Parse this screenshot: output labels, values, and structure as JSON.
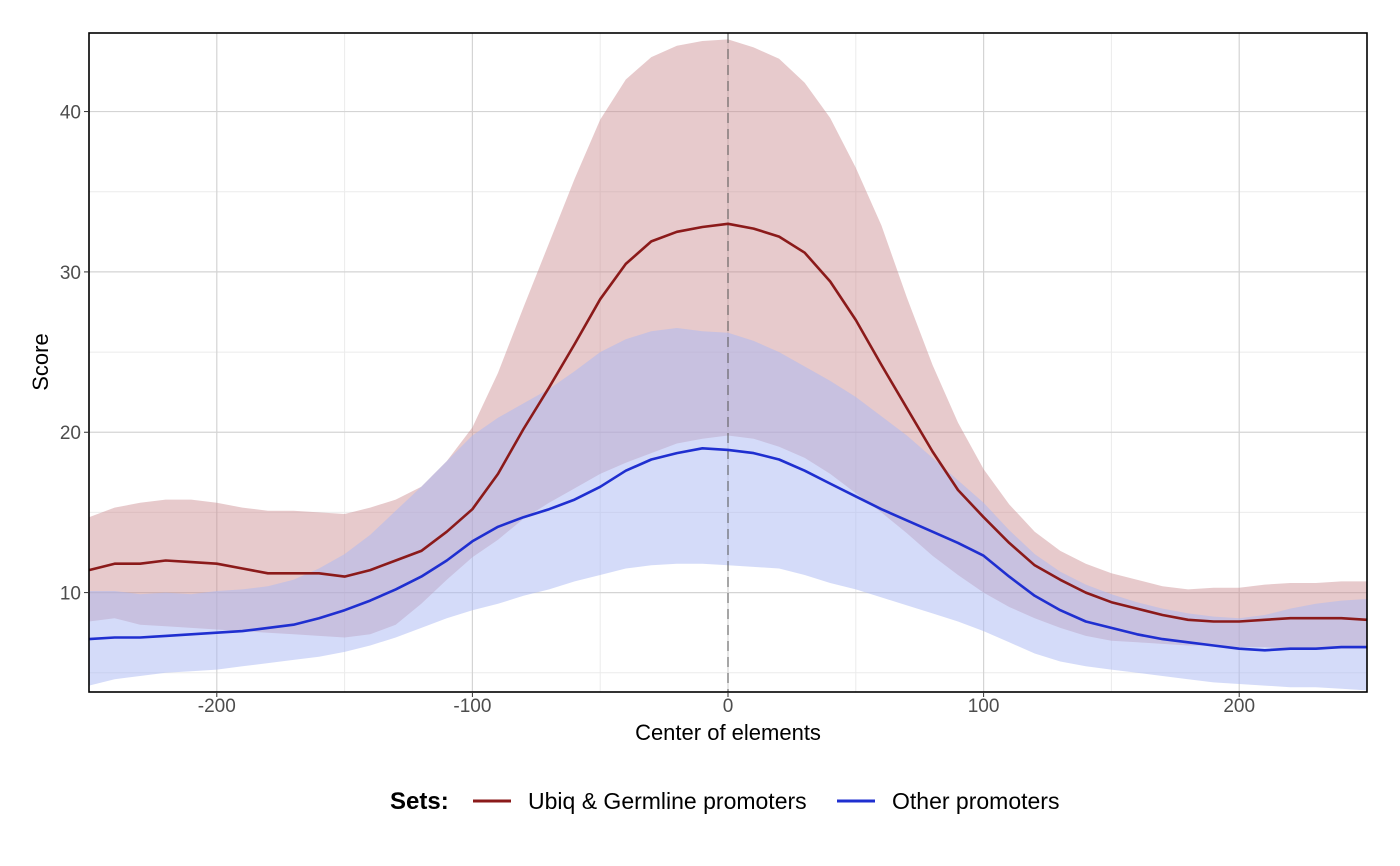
{
  "chart_data": {
    "type": "line",
    "xlabel": "Center of elements",
    "ylabel": "Score",
    "xlim": [
      -250,
      250
    ],
    "ylim": [
      3.8,
      44.9
    ],
    "x_ticks": [
      -200,
      -100,
      0,
      100,
      200
    ],
    "x_tick_labels": [
      "-200",
      "-100",
      "0",
      "100",
      "200"
    ],
    "y_ticks": [
      10,
      20,
      30,
      40
    ],
    "y_tick_labels": [
      "10",
      "20",
      "30",
      "40"
    ],
    "x_minor_ticks": [
      -250,
      -150,
      -50,
      50,
      150,
      250
    ],
    "y_minor_ticks": [
      5,
      15,
      25,
      35
    ],
    "grid": true,
    "vline_x": 0,
    "legend": {
      "title": "Sets:",
      "position": "bottom"
    },
    "x": [
      -250,
      -240,
      -230,
      -220,
      -210,
      -200,
      -190,
      -180,
      -170,
      -160,
      -150,
      -140,
      -130,
      -120,
      -110,
      -100,
      -90,
      -80,
      -70,
      -60,
      -50,
      -40,
      -30,
      -20,
      -10,
      0,
      10,
      20,
      30,
      40,
      50,
      60,
      70,
      80,
      90,
      100,
      110,
      120,
      130,
      140,
      150,
      160,
      170,
      180,
      190,
      200,
      210,
      220,
      230,
      240,
      250
    ],
    "series": [
      {
        "name": "Ubiq & Germline promoters",
        "color": "#8b1a1a",
        "band_color": "#c98a8e",
        "values": [
          11.4,
          11.8,
          11.8,
          12.0,
          11.9,
          11.8,
          11.5,
          11.2,
          11.2,
          11.2,
          11.0,
          11.4,
          12.0,
          12.6,
          13.8,
          15.2,
          17.4,
          20.2,
          22.8,
          25.5,
          28.3,
          30.5,
          31.9,
          32.5,
          32.8,
          33.0,
          32.7,
          32.2,
          31.2,
          29.4,
          27.0,
          24.2,
          21.5,
          18.8,
          16.4,
          14.7,
          13.1,
          11.7,
          10.8,
          10.0,
          9.4,
          9.0,
          8.6,
          8.3,
          8.2,
          8.2,
          8.3,
          8.4,
          8.4,
          8.4,
          8.3
        ],
        "lower": [
          8.2,
          8.4,
          8.0,
          7.9,
          7.8,
          7.7,
          7.6,
          7.5,
          7.4,
          7.3,
          7.2,
          7.4,
          8.0,
          9.3,
          10.8,
          12.2,
          13.3,
          14.6,
          15.6,
          16.5,
          17.4,
          18.1,
          18.7,
          19.3,
          19.6,
          19.8,
          19.6,
          19.1,
          18.4,
          17.4,
          16.2,
          15.0,
          13.7,
          12.3,
          11.1,
          10.0,
          9.1,
          8.4,
          7.8,
          7.3,
          7.0,
          6.9,
          6.8,
          6.7,
          6.7,
          6.6,
          6.6,
          6.5,
          6.5,
          6.5,
          6.5
        ],
        "upper": [
          14.7,
          15.3,
          15.6,
          15.8,
          15.8,
          15.6,
          15.3,
          15.1,
          15.1,
          15.0,
          14.9,
          15.3,
          15.8,
          16.6,
          18.2,
          20.3,
          23.7,
          27.8,
          31.8,
          35.8,
          39.5,
          42.0,
          43.4,
          44.1,
          44.4,
          44.5,
          44.0,
          43.3,
          41.8,
          39.6,
          36.5,
          32.9,
          28.4,
          24.2,
          20.6,
          17.7,
          15.5,
          13.8,
          12.6,
          11.8,
          11.2,
          10.8,
          10.4,
          10.2,
          10.3,
          10.3,
          10.5,
          10.6,
          10.6,
          10.7,
          10.7
        ]
      },
      {
        "name": "Other promoters",
        "color": "#1f2fd0",
        "band_color": "#a9b8f3",
        "values": [
          7.1,
          7.2,
          7.2,
          7.3,
          7.4,
          7.5,
          7.6,
          7.8,
          8.0,
          8.4,
          8.9,
          9.5,
          10.2,
          11.0,
          12.0,
          13.2,
          14.1,
          14.7,
          15.2,
          15.8,
          16.6,
          17.6,
          18.3,
          18.7,
          19.0,
          18.9,
          18.7,
          18.3,
          17.6,
          16.8,
          16.0,
          15.2,
          14.5,
          13.8,
          13.1,
          12.3,
          11.0,
          9.8,
          8.9,
          8.2,
          7.8,
          7.4,
          7.1,
          6.9,
          6.7,
          6.5,
          6.4,
          6.5,
          6.5,
          6.6,
          6.6
        ],
        "lower": [
          4.2,
          4.6,
          4.8,
          5.0,
          5.1,
          5.2,
          5.4,
          5.6,
          5.8,
          6.0,
          6.3,
          6.7,
          7.2,
          7.8,
          8.4,
          8.9,
          9.3,
          9.8,
          10.2,
          10.7,
          11.1,
          11.5,
          11.7,
          11.8,
          11.8,
          11.7,
          11.6,
          11.5,
          11.1,
          10.6,
          10.2,
          9.7,
          9.2,
          8.7,
          8.2,
          7.6,
          6.9,
          6.2,
          5.7,
          5.4,
          5.2,
          5.0,
          4.8,
          4.6,
          4.4,
          4.3,
          4.2,
          4.1,
          4.1,
          4.0,
          3.9
        ],
        "upper": [
          10.1,
          10.1,
          9.9,
          10.0,
          9.9,
          10.1,
          10.2,
          10.4,
          10.8,
          11.5,
          12.4,
          13.6,
          15.1,
          16.6,
          18.2,
          19.8,
          20.9,
          21.8,
          22.7,
          23.8,
          25.0,
          25.8,
          26.3,
          26.5,
          26.3,
          26.2,
          25.7,
          25.0,
          24.1,
          23.2,
          22.2,
          21.0,
          19.8,
          18.4,
          17.0,
          15.6,
          13.9,
          12.4,
          11.3,
          10.5,
          9.9,
          9.4,
          9.0,
          8.7,
          8.5,
          8.4,
          8.6,
          9.0,
          9.3,
          9.5,
          9.6
        ]
      }
    ]
  }
}
